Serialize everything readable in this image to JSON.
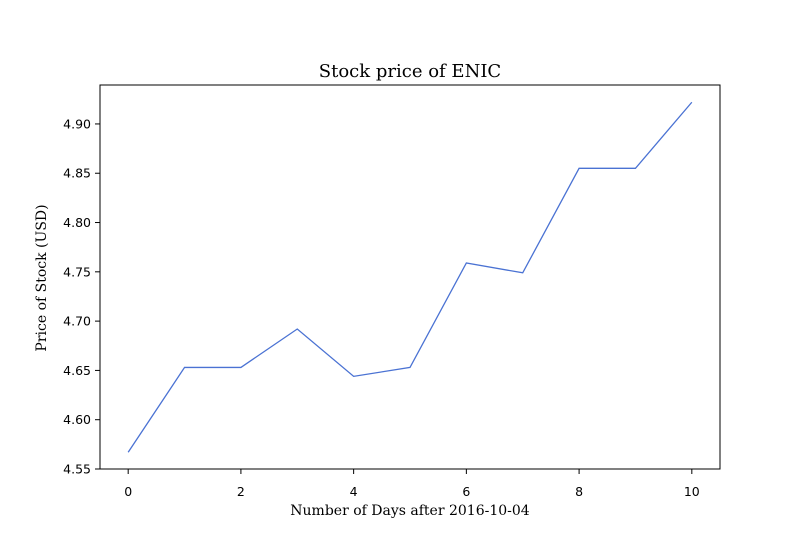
{
  "chart_data": {
    "type": "line",
    "title": "Stock price of ENIC",
    "xlabel": "Number of Days after 2016-10-04",
    "ylabel": "Price of Stock (USD)",
    "x": [
      0,
      1,
      2,
      3,
      4,
      5,
      6,
      7,
      8,
      9,
      10
    ],
    "series": [
      {
        "values": [
          4.567,
          4.653,
          4.653,
          4.692,
          4.644,
          4.653,
          4.759,
          4.749,
          4.855,
          4.855,
          4.922
        ]
      }
    ],
    "xlim": [
      -0.5,
      10.5
    ],
    "ylim": [
      4.55,
      4.9395
    ],
    "x_ticks": [
      0,
      2,
      4,
      6,
      8,
      10
    ],
    "x_tick_labels": [
      "0",
      "2",
      "4",
      "6",
      "8",
      "10"
    ],
    "y_ticks": [
      4.55,
      4.6,
      4.65,
      4.7,
      4.75,
      4.8,
      4.85,
      4.9
    ],
    "y_tick_labels": [
      "4.55",
      "4.60",
      "4.65",
      "4.70",
      "4.75",
      "4.80",
      "4.85",
      "4.90"
    ],
    "grid": false,
    "legend": "none",
    "line_color": "#4a72d3"
  }
}
